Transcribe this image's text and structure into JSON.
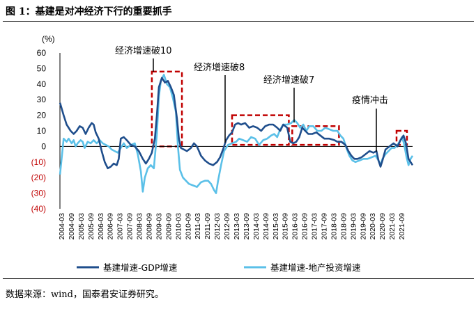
{
  "header": {
    "title": "图 1：基建是对冲经济下行的重要抓手"
  },
  "footer": {
    "source": "数据来源：wind，国泰君安证券研究。"
  },
  "colors": {
    "series1": "#1f4e8c",
    "series2": "#5bc0e8",
    "negative_tick": "#c00000",
    "box": "#c00000"
  },
  "chart_data": {
    "type": "line",
    "unit_label": "(%)",
    "ylim": [
      -40,
      60
    ],
    "yticks": [
      60,
      50,
      40,
      30,
      20,
      10,
      0,
      -10,
      -20,
      -30,
      -40
    ],
    "ytick_labels": [
      "60",
      "50",
      "40",
      "30",
      "20",
      "10",
      "0",
      "(10)",
      "(20)",
      "(30)",
      "(40)"
    ],
    "xlim": [
      2004.167,
      2021.75
    ],
    "xtick_labels": [
      "2004-03",
      "2004-09",
      "2005-03",
      "2005-09",
      "2006-03",
      "2006-09",
      "2007-03",
      "2007-09",
      "2008-03",
      "2008-09",
      "2009-03",
      "2009-09",
      "2010-03",
      "2010-09",
      "2011-03",
      "2011-09",
      "2012-03",
      "2012-09",
      "2013-03",
      "2013-09",
      "2014-03",
      "2014-09",
      "2015-03",
      "2015-09",
      "2016-03",
      "2016-09",
      "2017-03",
      "2017-09",
      "2018-03",
      "2018-09",
      "2019-03",
      "2019-09",
      "2020-03",
      "2020-09",
      "2021-03",
      "2021-09"
    ],
    "series": [
      {
        "name": "基建增速-GDP增速",
        "points": [
          [
            2004.17,
            28
          ],
          [
            2004.35,
            20
          ],
          [
            2004.5,
            14
          ],
          [
            2004.7,
            10
          ],
          [
            2004.85,
            8
          ],
          [
            2005.0,
            10
          ],
          [
            2005.15,
            13
          ],
          [
            2005.3,
            12
          ],
          [
            2005.45,
            8
          ],
          [
            2005.6,
            12
          ],
          [
            2005.75,
            15
          ],
          [
            2005.85,
            14
          ],
          [
            2005.95,
            9
          ],
          [
            2006.1,
            5
          ],
          [
            2006.25,
            -3
          ],
          [
            2006.4,
            -10
          ],
          [
            2006.55,
            -14
          ],
          [
            2006.7,
            -13
          ],
          [
            2006.85,
            -11
          ],
          [
            2007.0,
            -12
          ],
          [
            2007.1,
            -8
          ],
          [
            2007.2,
            5
          ],
          [
            2007.35,
            6
          ],
          [
            2007.5,
            4
          ],
          [
            2007.7,
            1
          ],
          [
            2007.9,
            0
          ],
          [
            2008.1,
            -3
          ],
          [
            2008.3,
            -8
          ],
          [
            2008.45,
            -11
          ],
          [
            2008.6,
            -8
          ],
          [
            2008.75,
            -4
          ],
          [
            2008.9,
            5
          ],
          [
            2009.0,
            20
          ],
          [
            2009.1,
            38
          ],
          [
            2009.25,
            44
          ],
          [
            2009.4,
            41
          ],
          [
            2009.55,
            42
          ],
          [
            2009.7,
            38
          ],
          [
            2009.85,
            33
          ],
          [
            2010.0,
            18
          ],
          [
            2010.1,
            5
          ],
          [
            2010.2,
            -1
          ],
          [
            2010.35,
            -2
          ],
          [
            2010.5,
            -3
          ],
          [
            2010.7,
            -1
          ],
          [
            2010.85,
            2
          ],
          [
            2011.0,
            0
          ],
          [
            2011.2,
            -6
          ],
          [
            2011.4,
            -9
          ],
          [
            2011.6,
            -11
          ],
          [
            2011.8,
            -12
          ],
          [
            2012.0,
            -10
          ],
          [
            2012.15,
            -7
          ],
          [
            2012.3,
            -2
          ],
          [
            2012.45,
            4
          ],
          [
            2012.6,
            7
          ],
          [
            2012.75,
            9
          ],
          [
            2012.9,
            14
          ],
          [
            2013.05,
            15
          ],
          [
            2013.2,
            14
          ],
          [
            2013.4,
            15
          ],
          [
            2013.6,
            12
          ],
          [
            2013.8,
            13
          ],
          [
            2014.0,
            12
          ],
          [
            2014.2,
            10
          ],
          [
            2014.4,
            13
          ],
          [
            2014.6,
            14
          ],
          [
            2014.8,
            14
          ],
          [
            2015.0,
            12
          ],
          [
            2015.15,
            10
          ],
          [
            2015.3,
            14
          ],
          [
            2015.5,
            12
          ],
          [
            2015.65,
            3
          ],
          [
            2015.8,
            2
          ],
          [
            2015.95,
            3
          ],
          [
            2016.1,
            6
          ],
          [
            2016.25,
            12
          ],
          [
            2016.4,
            10
          ],
          [
            2016.55,
            8
          ],
          [
            2016.75,
            8
          ],
          [
            2016.95,
            9
          ],
          [
            2017.15,
            7
          ],
          [
            2017.35,
            5
          ],
          [
            2017.6,
            5
          ],
          [
            2017.85,
            4
          ],
          [
            2018.0,
            3
          ],
          [
            2018.2,
            3
          ],
          [
            2018.4,
            1
          ],
          [
            2018.55,
            -3
          ],
          [
            2018.7,
            -6
          ],
          [
            2018.85,
            -8
          ],
          [
            2019.0,
            -8
          ],
          [
            2019.2,
            -7
          ],
          [
            2019.4,
            -5
          ],
          [
            2019.6,
            -3
          ],
          [
            2019.8,
            -4
          ],
          [
            2019.95,
            -3
          ],
          [
            2020.05,
            -9
          ],
          [
            2020.15,
            -13
          ],
          [
            2020.25,
            -9
          ],
          [
            2020.4,
            -2
          ],
          [
            2020.6,
            0
          ],
          [
            2020.8,
            2
          ],
          [
            2021.0,
            0
          ],
          [
            2021.15,
            4
          ],
          [
            2021.3,
            7
          ],
          [
            2021.42,
            2
          ],
          [
            2021.55,
            -8
          ],
          [
            2021.75,
            -12
          ]
        ]
      },
      {
        "name": "基建增速-地产投资增速",
        "points": [
          [
            2004.17,
            -18
          ],
          [
            2004.25,
            -8
          ],
          [
            2004.35,
            5
          ],
          [
            2004.5,
            3
          ],
          [
            2004.6,
            5
          ],
          [
            2004.75,
            2
          ],
          [
            2004.85,
            4
          ],
          [
            2004.95,
            0
          ],
          [
            2005.05,
            2
          ],
          [
            2005.2,
            4
          ],
          [
            2005.3,
            3
          ],
          [
            2005.4,
            -1
          ],
          [
            2005.55,
            3
          ],
          [
            2005.7,
            2
          ],
          [
            2005.85,
            4
          ],
          [
            2006.0,
            2
          ],
          [
            2006.15,
            4
          ],
          [
            2006.3,
            2
          ],
          [
            2006.45,
            1
          ],
          [
            2006.6,
            0
          ],
          [
            2006.75,
            -2
          ],
          [
            2006.9,
            -3
          ],
          [
            2007.05,
            -4
          ],
          [
            2007.2,
            -1
          ],
          [
            2007.35,
            2
          ],
          [
            2007.5,
            -1
          ],
          [
            2007.7,
            1
          ],
          [
            2007.9,
            2
          ],
          [
            2008.05,
            -5
          ],
          [
            2008.2,
            -16
          ],
          [
            2008.3,
            -29
          ],
          [
            2008.4,
            -20
          ],
          [
            2008.55,
            -14
          ],
          [
            2008.7,
            -12
          ],
          [
            2008.85,
            -14
          ],
          [
            2009.0,
            8
          ],
          [
            2009.1,
            32
          ],
          [
            2009.2,
            42
          ],
          [
            2009.35,
            46
          ],
          [
            2009.5,
            40
          ],
          [
            2009.65,
            38
          ],
          [
            2009.8,
            31
          ],
          [
            2009.95,
            22
          ],
          [
            2010.05,
            0
          ],
          [
            2010.15,
            -15
          ],
          [
            2010.3,
            -20
          ],
          [
            2010.45,
            -22
          ],
          [
            2010.6,
            -24
          ],
          [
            2010.8,
            -25
          ],
          [
            2011.0,
            -26
          ],
          [
            2011.2,
            -23
          ],
          [
            2011.4,
            -22
          ],
          [
            2011.55,
            -22
          ],
          [
            2011.7,
            -24
          ],
          [
            2011.85,
            -28
          ],
          [
            2011.95,
            -30
          ],
          [
            2012.05,
            -22
          ],
          [
            2012.2,
            -12
          ],
          [
            2012.35,
            -3
          ],
          [
            2012.55,
            1
          ],
          [
            2012.75,
            2
          ],
          [
            2012.95,
            3
          ],
          [
            2013.1,
            5
          ],
          [
            2013.3,
            4
          ],
          [
            2013.5,
            3
          ],
          [
            2013.7,
            6
          ],
          [
            2013.9,
            5
          ],
          [
            2014.1,
            1
          ],
          [
            2014.3,
            4
          ],
          [
            2014.5,
            5
          ],
          [
            2014.7,
            7
          ],
          [
            2014.85,
            8
          ],
          [
            2015.0,
            6
          ],
          [
            2015.15,
            11
          ],
          [
            2015.3,
            14
          ],
          [
            2015.5,
            14
          ],
          [
            2015.7,
            15
          ],
          [
            2015.85,
            17
          ],
          [
            2016.0,
            15
          ],
          [
            2016.15,
            12
          ],
          [
            2016.3,
            14
          ],
          [
            2016.45,
            10
          ],
          [
            2016.6,
            13
          ],
          [
            2016.8,
            13
          ],
          [
            2017.0,
            10
          ],
          [
            2017.2,
            10
          ],
          [
            2017.4,
            12
          ],
          [
            2017.6,
            11
          ],
          [
            2017.8,
            10
          ],
          [
            2018.0,
            10
          ],
          [
            2018.15,
            7
          ],
          [
            2018.3,
            5
          ],
          [
            2018.45,
            -1
          ],
          [
            2018.6,
            -6
          ],
          [
            2018.75,
            -9
          ],
          [
            2018.9,
            -10
          ],
          [
            2019.1,
            -9
          ],
          [
            2019.3,
            -8
          ],
          [
            2019.5,
            -8
          ],
          [
            2019.7,
            -7
          ],
          [
            2019.9,
            -6
          ],
          [
            2020.05,
            -9
          ],
          [
            2020.15,
            -12
          ],
          [
            2020.25,
            -8
          ],
          [
            2020.4,
            -5
          ],
          [
            2020.55,
            -3
          ],
          [
            2020.7,
            -1
          ],
          [
            2020.85,
            -1
          ],
          [
            2021.0,
            1
          ],
          [
            2021.1,
            3
          ],
          [
            2021.22,
            6
          ],
          [
            2021.32,
            2
          ],
          [
            2021.45,
            -7
          ],
          [
            2021.55,
            -12
          ],
          [
            2021.65,
            -8
          ],
          [
            2021.75,
            -6
          ]
        ]
      }
    ],
    "annotations": [
      "经济增速破10",
      "经济增速破8",
      "经济增速破7",
      "疫情冲击"
    ],
    "highlight_boxes": [
      {
        "x": [
          2008.75,
          2010.25
        ],
        "y": [
          0,
          48
        ]
      },
      {
        "x": [
          2012.75,
          2015.58
        ],
        "y": [
          1,
          20
        ]
      },
      {
        "x": [
          2015.75,
          2018.08
        ],
        "y": [
          1,
          13
        ]
      },
      {
        "x": [
          2020.95,
          2021.47
        ],
        "y": [
          1,
          10
        ]
      }
    ],
    "legend": [
      "基建增速-GDP增速",
      "基建增速-地产投资增速"
    ],
    "legend_position": "bottom"
  }
}
